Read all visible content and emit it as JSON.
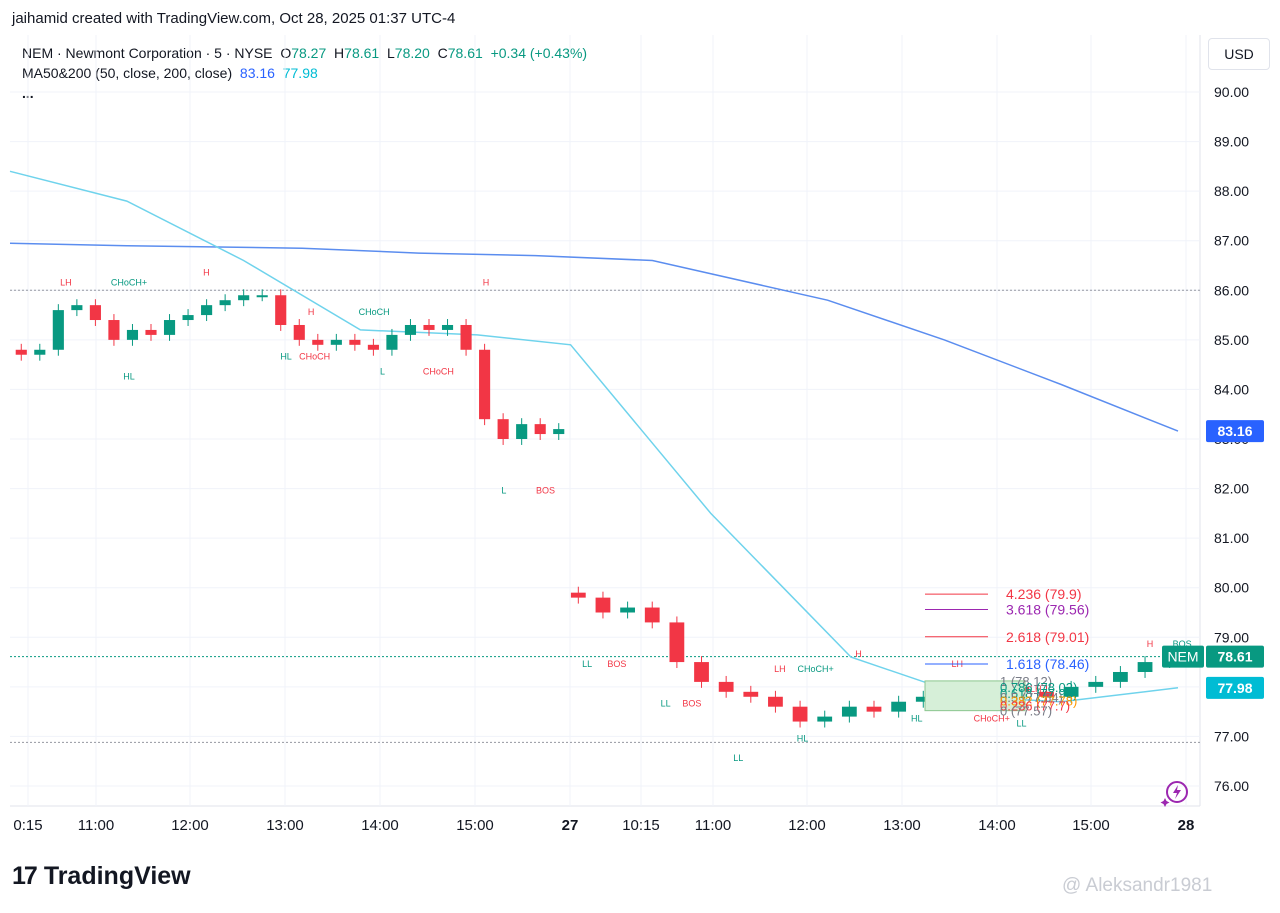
{
  "header": {
    "created_by": "jaihamid created with TradingView.com, Oct 28, 2025 01:37 UTC-4"
  },
  "legend": {
    "symbol_line": "NEM · Newmont Corporation · 5 · NYSE",
    "o_label": "O",
    "o_value": "78.27",
    "h_label": "H",
    "h_value": "78.61",
    "l_label": "L",
    "l_value": "78.20",
    "c_label": "C",
    "c_value": "78.61",
    "change": "+0.34 (+0.43%)",
    "ma_label": "MA50&200 (50, close, 200, close)",
    "ma50_value": "83.16",
    "ma200_value": "77.98",
    "more": "..."
  },
  "toolbar": {
    "currency_label": "USD"
  },
  "footer": {
    "logo_text": "TradingView",
    "logo_mark": "17",
    "watermark": "@ Aleksandr1981"
  },
  "colors": {
    "up": "#089981",
    "down": "#f23645",
    "ma50": "#5b8def",
    "ma200": "#6fd3ec",
    "grid": "#f0f3fa",
    "text": "#131722",
    "axis_text": "#131722"
  },
  "chart_data": {
    "type": "candlestick",
    "title": "NEM · Newmont Corporation · 5 · NYSE",
    "y_axis": {
      "ticks": [
        "76.00",
        "77.00",
        "78.00",
        "79.00",
        "80.00",
        "81.00",
        "82.00",
        "83.00",
        "84.00",
        "85.00",
        "86.00",
        "87.00",
        "88.00",
        "89.00",
        "90.00"
      ],
      "range": [
        75.6,
        91.0
      ],
      "side": "right"
    },
    "x_axis": {
      "ticks": [
        "0:15",
        "11:00",
        "12:00",
        "13:00",
        "14:00",
        "15:00",
        "27",
        "10:15",
        "11:00",
        "12:00",
        "13:00",
        "14:00",
        "15:00",
        "28"
      ]
    },
    "price_labels": {
      "last": "78.61",
      "last_tag": "NEM",
      "ma50": "83.16",
      "ma200": "77.98"
    },
    "dotted_levels": [
      86.0,
      78.61,
      76.88
    ],
    "session1_close": [
      84.7,
      84.8,
      85.6,
      85.7,
      85.4,
      85.0,
      85.2,
      85.1,
      85.4,
      85.5,
      85.7,
      85.8,
      85.9,
      85.9,
      85.3,
      85.0,
      84.9,
      85.0,
      84.9,
      84.8,
      85.1,
      85.3,
      85.2,
      85.3,
      84.8,
      83.4,
      83.0,
      83.3,
      83.1,
      83.2
    ],
    "session2_close": [
      79.8,
      79.5,
      79.6,
      79.3,
      78.5,
      78.1,
      77.9,
      77.8,
      77.6,
      77.3,
      77.4,
      77.6,
      77.5,
      77.7,
      77.8,
      77.9,
      77.9,
      78.0,
      77.9,
      77.8,
      78.0,
      78.1,
      78.3,
      78.5,
      78.6
    ],
    "ma50": [
      [
        0,
        86.95
      ],
      [
        0.1,
        86.9
      ],
      [
        0.25,
        86.85
      ],
      [
        0.35,
        86.75
      ],
      [
        0.45,
        86.7
      ],
      [
        0.55,
        86.6
      ],
      [
        0.7,
        85.8
      ],
      [
        0.8,
        85.0
      ],
      [
        0.9,
        84.1
      ],
      [
        1.0,
        83.16
      ]
    ],
    "ma200": [
      [
        0,
        88.4
      ],
      [
        0.1,
        87.8
      ],
      [
        0.2,
        86.6
      ],
      [
        0.3,
        85.2
      ],
      [
        0.4,
        85.1
      ],
      [
        0.48,
        84.9
      ],
      [
        0.6,
        81.5
      ],
      [
        0.72,
        78.6
      ],
      [
        0.82,
        77.8
      ],
      [
        0.9,
        77.7
      ],
      [
        1.0,
        77.98
      ]
    ],
    "annotations": [
      {
        "text": "LH",
        "price": 86.1,
        "xi": 0.047,
        "color": "#f23645"
      },
      {
        "text": "CHoCH+",
        "price": 86.1,
        "xi": 0.1,
        "color": "#089981"
      },
      {
        "text": "H",
        "price": 86.3,
        "xi": 0.165,
        "color": "#f23645"
      },
      {
        "text": "HL",
        "price": 84.2,
        "xi": 0.1,
        "color": "#089981"
      },
      {
        "text": "H",
        "price": 85.5,
        "xi": 0.253,
        "color": "#f23645"
      },
      {
        "text": "CHoCH",
        "price": 85.5,
        "xi": 0.306,
        "color": "#089981"
      },
      {
        "text": "HL",
        "price": 84.6,
        "xi": 0.232,
        "color": "#089981"
      },
      {
        "text": "CHoCH",
        "price": 84.6,
        "xi": 0.256,
        "color": "#f23645"
      },
      {
        "text": "L",
        "price": 84.3,
        "xi": 0.313,
        "color": "#089981"
      },
      {
        "text": "CHoCH",
        "price": 84.3,
        "xi": 0.36,
        "color": "#f23645"
      },
      {
        "text": "H",
        "price": 86.1,
        "xi": 0.4,
        "color": "#f23645"
      },
      {
        "text": "L",
        "price": 81.9,
        "xi": 0.415,
        "color": "#089981"
      },
      {
        "text": "BOS",
        "price": 81.9,
        "xi": 0.45,
        "color": "#f23645"
      },
      {
        "text": "LL",
        "price": 78.4,
        "xi": 0.485,
        "color": "#089981"
      },
      {
        "text": "BOS",
        "price": 78.4,
        "xi": 0.51,
        "color": "#f23645"
      },
      {
        "text": "LL",
        "price": 77.6,
        "xi": 0.551,
        "color": "#089981"
      },
      {
        "text": "BOS",
        "price": 77.6,
        "xi": 0.573,
        "color": "#f23645"
      },
      {
        "text": "LL",
        "price": 76.5,
        "xi": 0.612,
        "color": "#089981"
      },
      {
        "text": "LH",
        "price": 78.3,
        "xi": 0.647,
        "color": "#f23645"
      },
      {
        "text": "CHoCH+",
        "price": 78.3,
        "xi": 0.677,
        "color": "#089981"
      },
      {
        "text": "HL",
        "price": 76.9,
        "xi": 0.666,
        "color": "#089981"
      },
      {
        "text": "H",
        "price": 78.6,
        "xi": 0.713,
        "color": "#f23645"
      },
      {
        "text": "HL",
        "price": 77.3,
        "xi": 0.762,
        "color": "#089981"
      },
      {
        "text": "LH",
        "price": 78.4,
        "xi": 0.796,
        "color": "#f23645"
      },
      {
        "text": "CHoCH+",
        "price": 77.3,
        "xi": 0.825,
        "color": "#f23645"
      },
      {
        "text": "LL",
        "price": 77.2,
        "xi": 0.85,
        "color": "#089981"
      },
      {
        "text": "LH",
        "price": 77.9,
        "xi": 0.862,
        "color": "#f23645"
      },
      {
        "text": "H",
        "price": 78.8,
        "xi": 0.958,
        "color": "#f23645"
      },
      {
        "text": "BOS",
        "price": 78.8,
        "xi": 0.985,
        "color": "#089981"
      }
    ],
    "fib_levels": [
      {
        "label": "4.236 (79.9)",
        "price": 79.87,
        "color": "#f23645"
      },
      {
        "label": "3.618 (79.56)",
        "price": 79.56,
        "color": "#9c27b0"
      },
      {
        "label": "2.618 (79.01)",
        "price": 79.01,
        "color": "#f23645"
      },
      {
        "label": "1.618 (78.46)",
        "price": 78.46,
        "color": "#2962ff"
      },
      {
        "label": "1 (78.12)",
        "price": 78.12,
        "color": "#787b86"
      },
      {
        "label": "0.786 (78.02)",
        "price": 78.0,
        "color": "#089981"
      },
      {
        "label": "0.618 (77.93)",
        "price": 77.88,
        "color": "#089981"
      },
      {
        "label": "0.5 (77.84)",
        "price": 77.8,
        "color": "#787b86"
      },
      {
        "label": "0.382 (77.78)",
        "price": 77.72,
        "color": "#ff9800"
      },
      {
        "label": "0.236 (77.7)",
        "price": 77.62,
        "color": "#f23645"
      },
      {
        "label": "0 (77.57)",
        "price": 77.52,
        "color": "#787b86"
      }
    ]
  }
}
